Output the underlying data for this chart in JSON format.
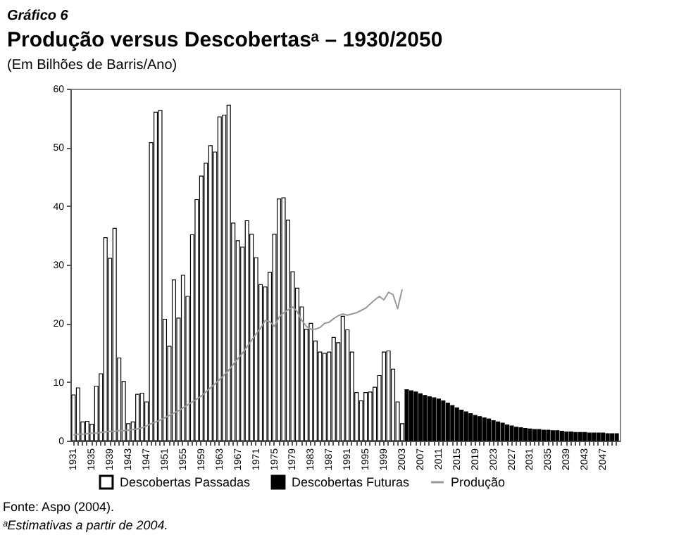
{
  "chart_data": {
    "type": "bar",
    "title": "Produção versus Descobertasᵃ – 1930/2050",
    "subtitle": "(Em Bilhões de Barris/Ano)",
    "categories": [
      "1931",
      null,
      null,
      null,
      "1935",
      null,
      null,
      null,
      "1939",
      null,
      null,
      null,
      "1943",
      null,
      null,
      null,
      "1947",
      null,
      null,
      null,
      "1951",
      null,
      null,
      null,
      "1955",
      null,
      null,
      null,
      "1959",
      null,
      null,
      null,
      "1963",
      null,
      null,
      null,
      "1967",
      null,
      null,
      null,
      "1971",
      null,
      null,
      null,
      "1975",
      null,
      null,
      null,
      "1979",
      null,
      null,
      null,
      "1983",
      null,
      null,
      null,
      "1987",
      null,
      null,
      null,
      "1991",
      null,
      null,
      null,
      "1995",
      null,
      null,
      null,
      "1999",
      null,
      null,
      null,
      "2003",
      null,
      null,
      null,
      "2007",
      null,
      null,
      null,
      "2011",
      null,
      null,
      null,
      "2015",
      null,
      null,
      null,
      "2019",
      null,
      null,
      null,
      "2023",
      null,
      null,
      null,
      "2027",
      null,
      null,
      null,
      "2031",
      null,
      null,
      null,
      "2035",
      null,
      null,
      null,
      "2039",
      null,
      null,
      null,
      "2043",
      null,
      null,
      null,
      "2047",
      null,
      null,
      null
    ],
    "series": [
      {
        "name": "Descobertas Passadas",
        "color": "#ffffff",
        "values": [
          7.8,
          9.0,
          3.2,
          3.3,
          2.8,
          9.3,
          11.4,
          34.6,
          31.1,
          36.2,
          14.1,
          10.1,
          2.9,
          3.2,
          7.9,
          8.1,
          6.6,
          50.8,
          56.0,
          56.3,
          20.7,
          16.1,
          27.4,
          20.9,
          28.2,
          24.6,
          35.1,
          41.1,
          45.1,
          47.3,
          50.3,
          49.2,
          55.2,
          55.5,
          57.2,
          37.1,
          34.1,
          33.0,
          37.5,
          35.2,
          31.2,
          26.6,
          26.2,
          28.7,
          35.2,
          41.2,
          41.4,
          37.6,
          28.8,
          26.0,
          22.8,
          19.0,
          20.0,
          17.0,
          15.1,
          14.9,
          15.1,
          17.6,
          16.7,
          21.2,
          18.9,
          15.1,
          8.2,
          6.8,
          8.2,
          8.3,
          9.1,
          11.1,
          15.1,
          15.3,
          12.2,
          6.6,
          2.9,
          null,
          null,
          null,
          null,
          null,
          null,
          null,
          null,
          null,
          null,
          null,
          null,
          null,
          null,
          null,
          null,
          null,
          null,
          null,
          null,
          null,
          null,
          null,
          null,
          null,
          null,
          null,
          null,
          null,
          null,
          null,
          null,
          null,
          null,
          null,
          null,
          null,
          null,
          null,
          null,
          null,
          null,
          null,
          null,
          null,
          null,
          null
        ]
      },
      {
        "name": "Descobertas Futuras",
        "color": "#000000",
        "values": [
          null,
          null,
          null,
          null,
          null,
          null,
          null,
          null,
          null,
          null,
          null,
          null,
          null,
          null,
          null,
          null,
          null,
          null,
          null,
          null,
          null,
          null,
          null,
          null,
          null,
          null,
          null,
          null,
          null,
          null,
          null,
          null,
          null,
          null,
          null,
          null,
          null,
          null,
          null,
          null,
          null,
          null,
          null,
          null,
          null,
          null,
          null,
          null,
          null,
          null,
          null,
          null,
          null,
          null,
          null,
          null,
          null,
          null,
          null,
          null,
          null,
          null,
          null,
          null,
          null,
          null,
          null,
          null,
          null,
          null,
          null,
          null,
          null,
          8.7,
          8.5,
          8.3,
          8.0,
          7.7,
          7.5,
          7.3,
          7.1,
          6.8,
          6.4,
          6.0,
          5.6,
          5.2,
          4.9,
          4.6,
          4.3,
          4.1,
          3.9,
          3.7,
          3.4,
          3.2,
          3.0,
          2.7,
          2.5,
          2.3,
          2.2,
          2.1,
          2.0,
          1.9,
          1.9,
          1.8,
          1.8,
          1.7,
          1.7,
          1.6,
          1.5,
          1.5,
          1.4,
          1.4,
          1.4,
          1.3,
          1.3,
          1.3,
          1.3,
          1.2,
          1.2,
          1.2
        ]
      },
      {
        "name": "Produção",
        "type": "line",
        "line_style": "solid",
        "color": "#999999",
        "values": [
          1.0,
          1.1,
          1.1,
          1.2,
          1.3,
          1.3,
          1.4,
          1.5,
          1.6,
          1.6,
          1.7,
          1.7,
          1.8,
          1.9,
          2.0,
          2.2,
          2.5,
          2.9,
          3.2,
          3.5,
          3.9,
          4.3,
          4.7,
          5.1,
          5.6,
          6.1,
          6.6,
          7.1,
          7.6,
          8.3,
          9.0,
          9.7,
          10.4,
          11.2,
          12.0,
          13.0,
          14.0,
          14.9,
          16.0,
          17.1,
          18.2,
          19.2,
          20.5,
          20.3,
          19.5,
          21.0,
          21.8,
          22.3,
          22.8,
          22.0,
          20.5,
          19.5,
          19.0,
          19.0,
          19.3,
          20.0,
          20.2,
          20.8,
          21.3,
          21.6,
          21.4,
          21.6,
          21.8,
          22.2,
          22.6,
          23.3,
          24.0,
          24.6,
          24.0,
          25.3,
          24.9,
          22.5,
          25.8,
          null,
          null,
          null,
          null,
          null,
          null,
          null,
          null,
          null,
          null,
          null,
          null,
          null,
          null,
          null,
          null,
          null,
          null,
          null,
          null,
          null,
          null,
          null,
          null,
          null,
          null,
          null,
          null,
          null,
          null,
          null,
          null,
          null,
          null,
          null,
          null,
          null,
          null,
          null,
          null,
          null,
          null,
          null,
          null,
          null,
          null,
          null
        ]
      }
    ],
    "ylim": [
      0,
      60
    ],
    "yticks": [
      0,
      10,
      20,
      30,
      40,
      50,
      60
    ],
    "grid": false,
    "legend": "bottom",
    "annotations": [
      "Gráfico 6",
      "Fonte: Aspo (2004).",
      "ᵃEstimativas a partir de 2004."
    ]
  }
}
